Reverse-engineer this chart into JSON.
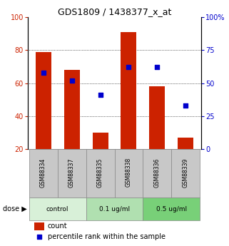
{
  "title": "GDS1809 / 1438377_x_at",
  "samples": [
    "GSM88334",
    "GSM88337",
    "GSM88335",
    "GSM88338",
    "GSM88336",
    "GSM88339"
  ],
  "counts": [
    79,
    68,
    30,
    91,
    58,
    27
  ],
  "percentile_ranks": [
    58,
    52,
    41,
    62,
    62,
    33
  ],
  "dose_groups": [
    {
      "label": "control",
      "indices": [
        0,
        1
      ],
      "color": "#d8f0d8"
    },
    {
      "label": "0.1 ug/ml",
      "indices": [
        2,
        3
      ],
      "color": "#b0e0b0"
    },
    {
      "label": "0.5 ug/ml",
      "indices": [
        4,
        5
      ],
      "color": "#78d078"
    }
  ],
  "bar_color": "#cc2200",
  "dot_color": "#0000cc",
  "left_axis_color": "#cc2200",
  "right_axis_color": "#0000cc",
  "left_ylim": [
    20,
    100
  ],
  "left_yticks": [
    20,
    40,
    60,
    80,
    100
  ],
  "right_ylim": [
    0,
    100
  ],
  "right_yticks": [
    0,
    25,
    50,
    75,
    100
  ],
  "right_yticklabels": [
    "0",
    "25",
    "50",
    "75",
    "100%"
  ],
  "gridlines_at": [
    40,
    60,
    80
  ],
  "bar_width": 0.55,
  "sample_area_color": "#c8c8c8",
  "title_fontsize": 9,
  "axis_fontsize": 7,
  "dose_label": "dose",
  "legend_count_label": "count",
  "legend_pct_label": "percentile rank within the sample"
}
